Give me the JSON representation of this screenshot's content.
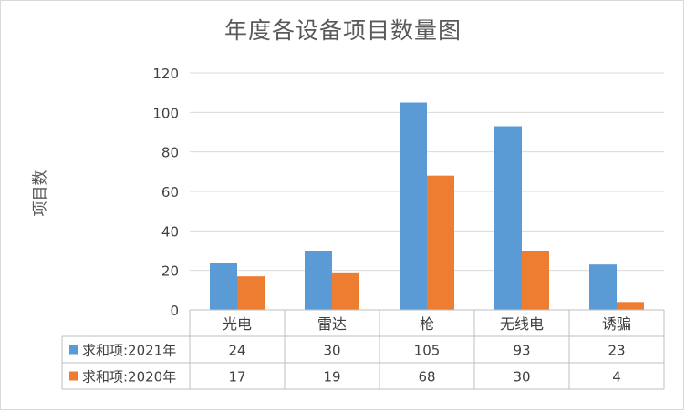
{
  "chart_data": {
    "type": "bar",
    "title": "年度各设备项目数量图",
    "xlabel": "",
    "ylabel": "项目数",
    "categories": [
      "光电",
      "雷达",
      "枪",
      "无线电",
      "诱骗"
    ],
    "series": [
      {
        "name": "求和项:2021年",
        "color": "#5b9bd5",
        "values": [
          24,
          30,
          105,
          93,
          23
        ]
      },
      {
        "name": "求和项:2020年",
        "color": "#ed7d31",
        "values": [
          17,
          19,
          68,
          30,
          4
        ]
      }
    ],
    "ylim": [
      0,
      120
    ],
    "yticks": [
      0,
      20,
      40,
      60,
      80,
      100,
      120
    ],
    "grid": true,
    "legend": "data-table"
  }
}
